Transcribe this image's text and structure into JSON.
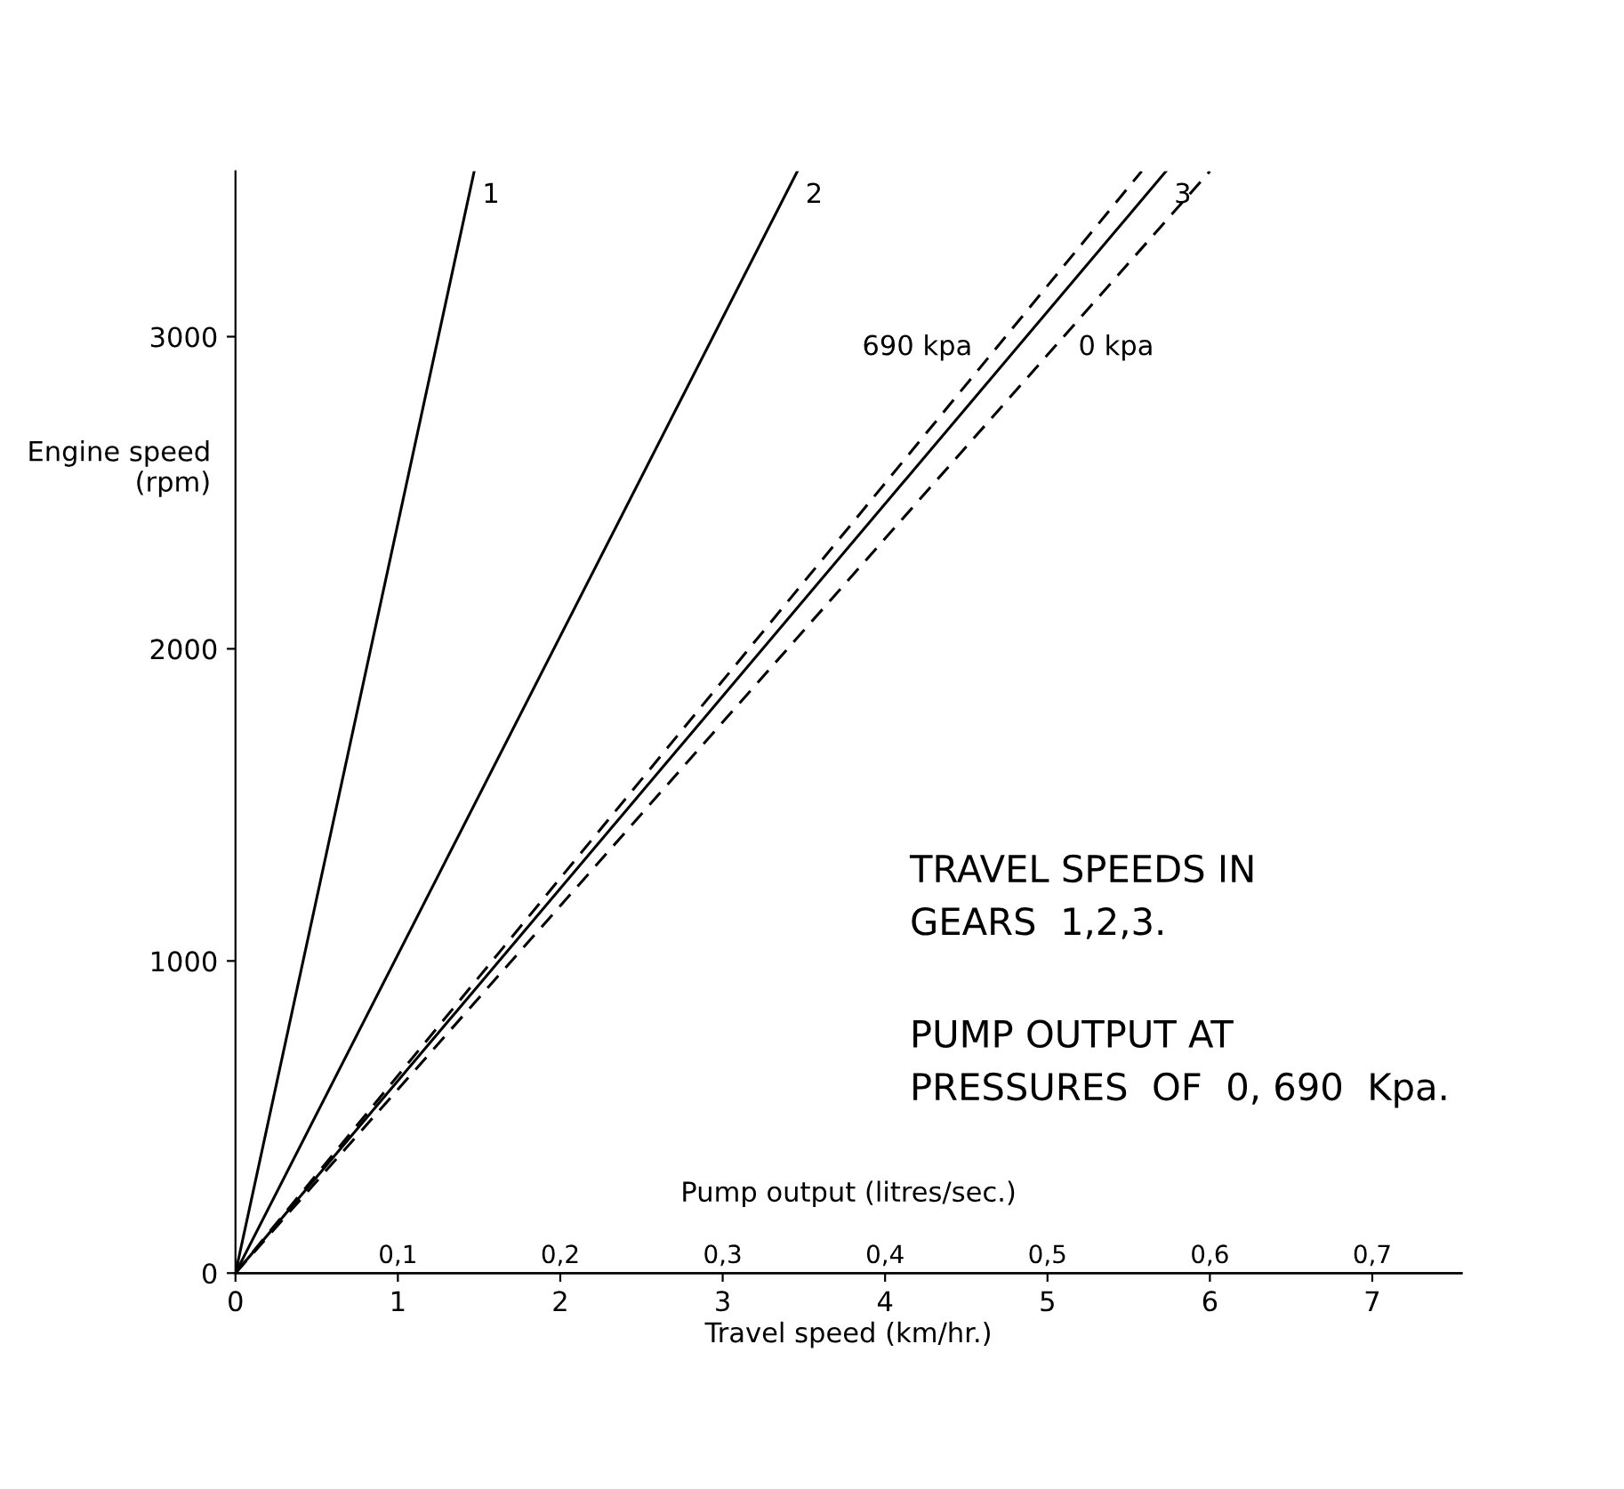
{
  "chart_data": {
    "type": "line",
    "xlabel": "Travel speed (km/hr.)",
    "x2label": "Pump output (litres/sec.)",
    "ylabel": "Engine speed\n(rpm)",
    "xlim": [
      0,
      7.55
    ],
    "xticks": [
      0,
      1,
      2,
      3,
      4,
      5,
      6,
      7
    ],
    "x2lim": [
      0,
      0.755
    ],
    "x2ticks": [
      {
        "value": 0.1,
        "label": "0,1"
      },
      {
        "value": 0.2,
        "label": "0,2"
      },
      {
        "value": 0.3,
        "label": "0,3"
      },
      {
        "value": 0.4,
        "label": "0,4"
      },
      {
        "value": 0.5,
        "label": "0,5"
      },
      {
        "value": 0.6,
        "label": "0,6"
      },
      {
        "value": 0.7,
        "label": "0,7"
      }
    ],
    "ylim": [
      0,
      3530
    ],
    "yticks": [
      0,
      1000,
      2000,
      3000
    ],
    "grid": false,
    "legend": false,
    "marker": "none",
    "series": [
      {
        "name": "1",
        "color": "#000000",
        "line_style": "solid",
        "x": [
          0,
          1.47
        ],
        "values": [
          0,
          3530
        ]
      },
      {
        "name": "2",
        "color": "#000000",
        "line_style": "solid",
        "x": [
          0,
          3.46
        ],
        "values": [
          0,
          3530
        ]
      },
      {
        "name": "3",
        "color": "#000000",
        "line_style": "solid",
        "x": [
          0,
          5.73
        ],
        "values": [
          0,
          3530
        ]
      },
      {
        "name": "690 kpa",
        "color": "#000000",
        "line_style": "dashed",
        "x": [
          0,
          5.58
        ],
        "values": [
          0,
          3530
        ]
      },
      {
        "name": "0 kpa",
        "color": "#000000",
        "line_style": "dashed",
        "x": [
          0,
          6.0
        ],
        "values": [
          0,
          3530
        ]
      }
    ],
    "annotations": [
      "TRAVEL SPEEDS IN\nGEARS  1,2,3.",
      "PUMP OUTPUT AT\nPRESSURES  OF  0, 690  Kpa."
    ]
  }
}
